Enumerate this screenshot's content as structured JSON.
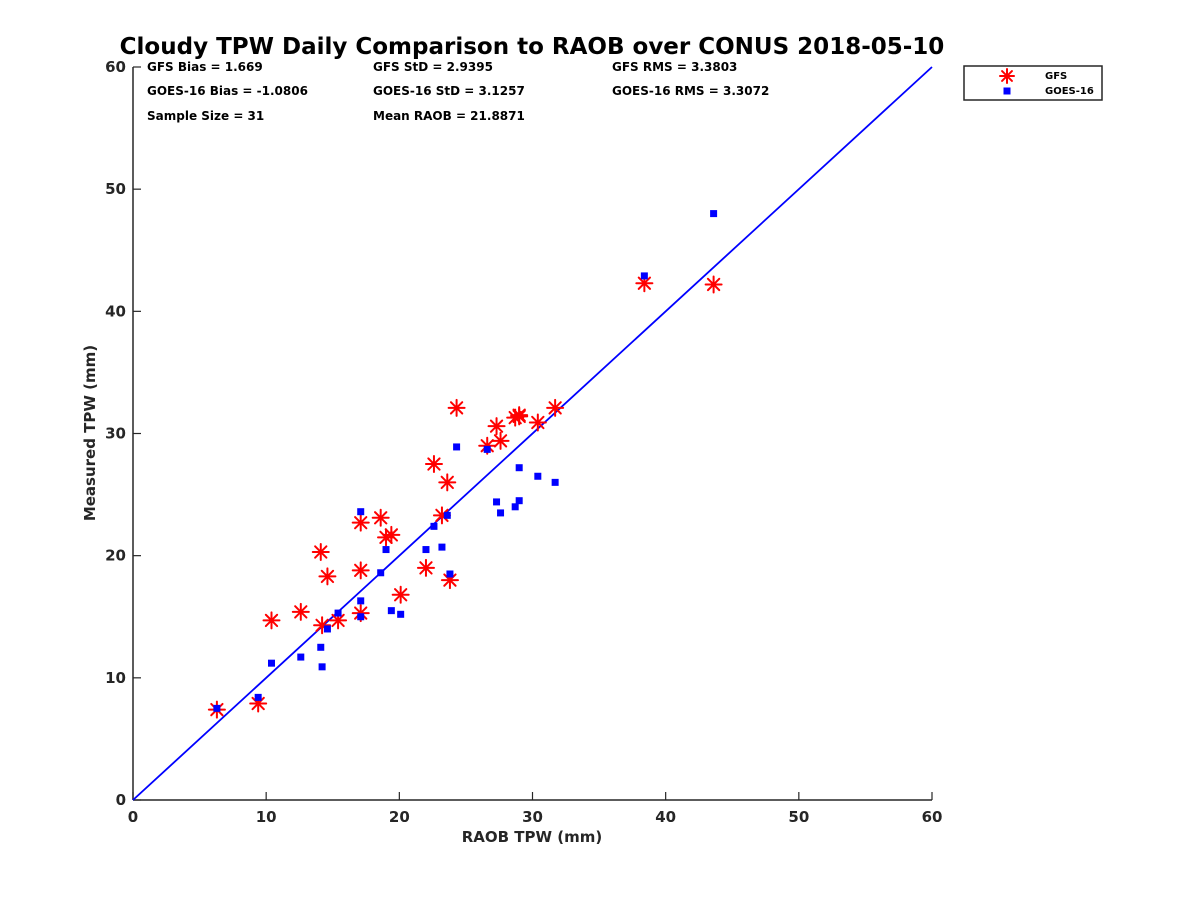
{
  "chart_data": {
    "type": "scatter",
    "title": "Cloudy TPW Daily Comparison to RAOB over CONUS 2018-05-10",
    "xlabel": "RAOB TPW (mm)",
    "ylabel": "Measured TPW (mm)",
    "xlim": [
      0,
      60
    ],
    "ylim": [
      0,
      60
    ],
    "xticks": [
      "0",
      "10",
      "20",
      "30",
      "40",
      "50",
      "60"
    ],
    "yticks": [
      "0",
      "10",
      "20",
      "30",
      "40",
      "50",
      "60"
    ],
    "grid": false,
    "legend_position": "top-right, outside plot",
    "stats": {
      "gfs_bias": "GFS Bias = 1.669",
      "goes_bias": "GOES-16 Bias = -1.0806",
      "sample_size": "Sample Size = 31",
      "gfs_std": "GFS StD = 2.9395",
      "goes_std": "GOES-16 StD = 3.1257",
      "mean_raob": "Mean RAOB = 21.8871",
      "gfs_rms": "GFS RMS = 3.3803",
      "goes_rms": "GOES-16 RMS = 3.3072"
    },
    "reference_line": {
      "type": "one-to-one",
      "x": [
        0,
        60
      ],
      "y": [
        0,
        60
      ],
      "color": "#0000ff"
    },
    "series": [
      {
        "name": "GFS",
        "marker": "asterisk",
        "color": "#ff0000",
        "points": [
          [
            6.3,
            7.4
          ],
          [
            9.4,
            7.9
          ],
          [
            10.4,
            14.7
          ],
          [
            12.6,
            15.4
          ],
          [
            14.1,
            20.3
          ],
          [
            14.2,
            14.3
          ],
          [
            14.6,
            18.3
          ],
          [
            15.4,
            14.7
          ],
          [
            17.1,
            22.7
          ],
          [
            17.1,
            18.8
          ],
          [
            17.1,
            15.3
          ],
          [
            18.6,
            23.1
          ],
          [
            19.0,
            21.5
          ],
          [
            19.4,
            21.7
          ],
          [
            20.1,
            16.8
          ],
          [
            22.0,
            19.0
          ],
          [
            22.6,
            27.5
          ],
          [
            23.2,
            23.3
          ],
          [
            23.6,
            26.0
          ],
          [
            23.8,
            18.0
          ],
          [
            24.3,
            32.1
          ],
          [
            26.6,
            29.0
          ],
          [
            27.3,
            30.6
          ],
          [
            27.6,
            29.4
          ],
          [
            28.7,
            31.3
          ],
          [
            29.0,
            31.5
          ],
          [
            30.4,
            30.9
          ],
          [
            31.7,
            32.1
          ],
          [
            38.4,
            42.3
          ],
          [
            43.6,
            42.2
          ],
          [
            29.0,
            31.4
          ]
        ]
      },
      {
        "name": "GOES-16",
        "marker": "square",
        "color": "#0000ff",
        "points": [
          [
            6.3,
            7.5
          ],
          [
            9.4,
            8.4
          ],
          [
            10.4,
            11.2
          ],
          [
            12.6,
            11.7
          ],
          [
            14.1,
            12.5
          ],
          [
            14.2,
            10.9
          ],
          [
            14.6,
            14.0
          ],
          [
            15.4,
            15.3
          ],
          [
            17.1,
            23.6
          ],
          [
            17.1,
            16.3
          ],
          [
            17.1,
            15.0
          ],
          [
            18.6,
            18.6
          ],
          [
            19.0,
            20.5
          ],
          [
            19.4,
            15.5
          ],
          [
            20.1,
            15.2
          ],
          [
            22.0,
            20.5
          ],
          [
            22.6,
            22.4
          ],
          [
            23.2,
            20.7
          ],
          [
            23.6,
            23.3
          ],
          [
            23.8,
            18.5
          ],
          [
            24.3,
            28.9
          ],
          [
            26.6,
            28.7
          ],
          [
            27.3,
            24.4
          ],
          [
            27.6,
            23.5
          ],
          [
            28.7,
            24.0
          ],
          [
            29.0,
            24.5
          ],
          [
            29.0,
            27.2
          ],
          [
            30.4,
            26.5
          ],
          [
            31.7,
            26.0
          ],
          [
            38.4,
            42.9
          ],
          [
            43.6,
            48.0
          ]
        ]
      }
    ]
  }
}
